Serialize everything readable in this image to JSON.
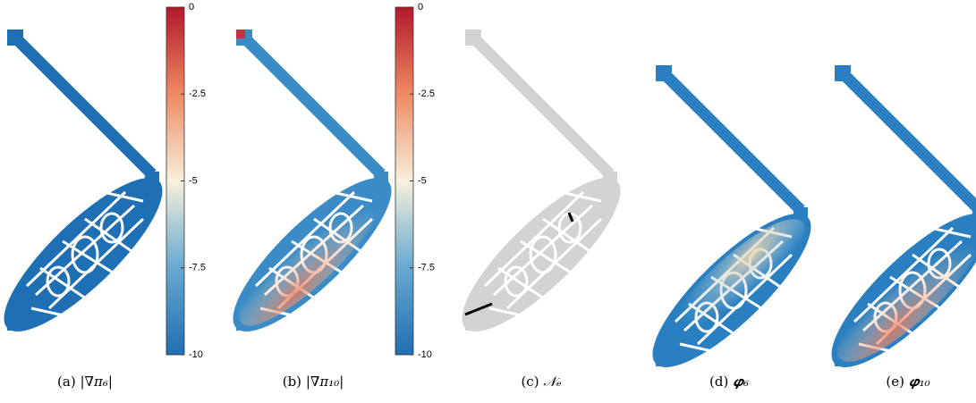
{
  "panels": [
    {
      "label": "(a)",
      "caption": "|∇π₆|"
    },
    {
      "label": "(b)",
      "caption": "|∇π₁₀|"
    },
    {
      "label": "(c)",
      "caption": "𝒩ₑ"
    },
    {
      "label": "(d)",
      "caption": "𝝋₆"
    },
    {
      "label": "(e)",
      "caption": "𝝋₁₀"
    }
  ],
  "colorbars": [
    {
      "range": [
        -10,
        0
      ],
      "ticks": [
        0,
        -2.5,
        -5,
        -7.5,
        -10
      ]
    },
    {
      "range": [
        -10,
        0
      ],
      "ticks": [
        0,
        -2.5,
        -5,
        -7.5,
        -10
      ]
    }
  ]
}
